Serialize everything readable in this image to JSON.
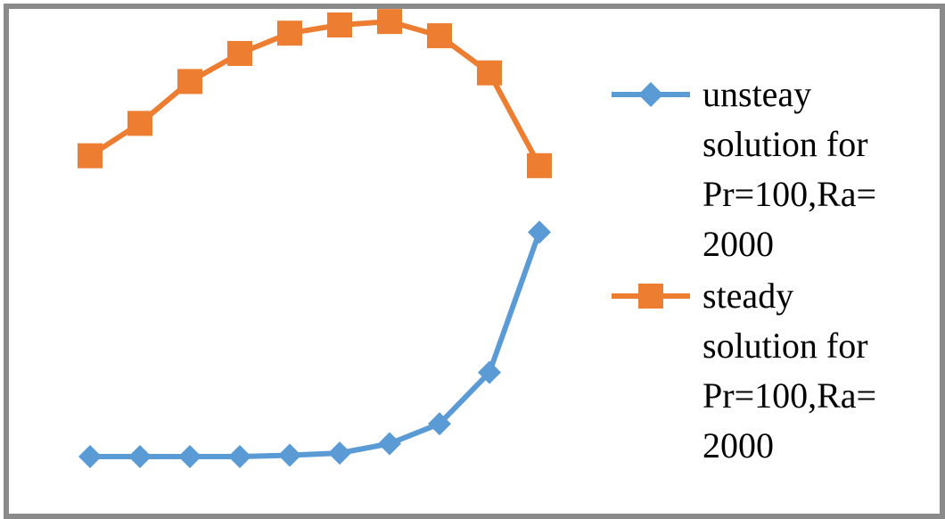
{
  "chart_data": {
    "type": "line",
    "title": "",
    "xlabel": "",
    "ylabel": "",
    "axes_visible": false,
    "grid": false,
    "legend_position": "right",
    "x": [
      1,
      2,
      3,
      4,
      5,
      6,
      7,
      8,
      9,
      10
    ],
    "ylim": [
      0,
      100
    ],
    "series": [
      {
        "name": "unsteay solution for Pr=100,Ra= 2000",
        "marker": "diamond",
        "color": "#5B9BD5",
        "values": [
          0.0,
          0.0,
          0.0,
          0.0,
          0.3,
          0.8,
          3.0,
          7.6,
          19.5,
          52.0
        ]
      },
      {
        "name": "steady solution for Pr=100,Ra= 2000",
        "marker": "square",
        "color": "#ED7D31",
        "values": [
          69.7,
          77.2,
          86.9,
          93.4,
          98.1,
          100.0,
          100.8,
          97.5,
          88.9,
          67.4
        ]
      }
    ]
  }
}
